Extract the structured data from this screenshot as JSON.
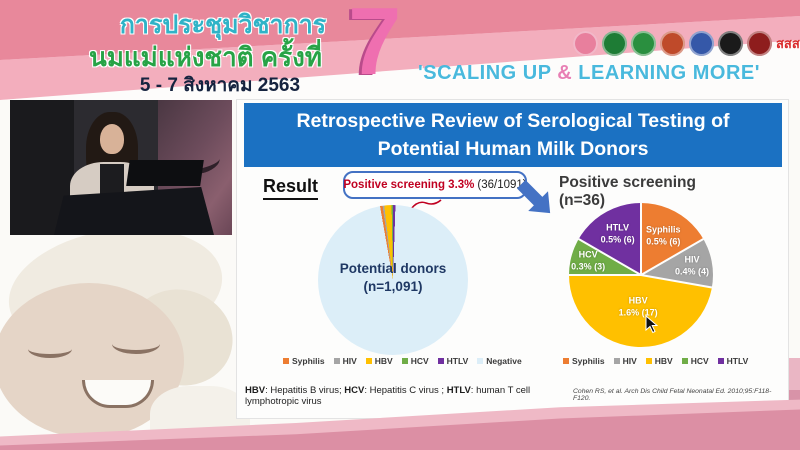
{
  "header": {
    "title_line1": "การประชุมวิชาการ",
    "title_line2": "นมแม่แห่งชาติ ครั้งที่",
    "edition_number": "7",
    "date_line": "5 - 7 สิงหาคม 2563",
    "slogan_part1": "'SCALING UP ",
    "slogan_amp": "&",
    "slogan_part2": " LEARNING MORE'",
    "logos": [
      {
        "name": "mother-child-foundation",
        "color": "#e87f9d",
        "text": ""
      },
      {
        "name": "green-health-org",
        "color": "#1e7c35",
        "text": ""
      },
      {
        "name": "public-health-dept",
        "color": "#2a8f3f",
        "text": ""
      },
      {
        "name": "university-emblem",
        "color": "#bf4a2a",
        "text": ""
      },
      {
        "name": "royal-college-emblem",
        "color": "#3558a8",
        "text": ""
      },
      {
        "name": "medical-council-emblem",
        "color": "#1a1a1a",
        "text": ""
      },
      {
        "name": "nursing-council-emblem",
        "color": "#8e1d1d",
        "text": ""
      },
      {
        "name": "thai-health-foundation",
        "color": "#d92b2b",
        "text": "สสส"
      }
    ]
  },
  "slide": {
    "title_line1": "Retrospective Review of Serological Testing of",
    "title_line2": "Potential Human Milk Donors",
    "result_label": "Result",
    "callout_highlight": "Positive screening 3.3%",
    "callout_detail": "(36/1091)",
    "left_pie_label_line1": "Potential donors",
    "left_pie_label_line2": "(n=1,091)",
    "right_pie_title": "Positive screening (n=36)",
    "footnote_segments": [
      {
        "text": "HBV",
        "bold": true
      },
      {
        "text": ": Hepatitis B virus; ",
        "bold": false
      },
      {
        "text": "HCV",
        "bold": true
      },
      {
        "text": ": Hepatitis C virus ; ",
        "bold": false
      },
      {
        "text": "HTLV",
        "bold": true
      },
      {
        "text": ": human T cell lymphotropic virus",
        "bold": false
      }
    ],
    "citation": "Cohen RS, et al. Arch Dis Child Fetal Neonatal Ed. 2010;95:F118-F120."
  },
  "chart_data": [
    {
      "type": "pie",
      "title": "Potential donors (n=1,091)",
      "total": 1091,
      "annotation": "Positive screening 3.3% (36/1091)",
      "legend_position": "bottom",
      "slices": [
        {
          "label": "Syphilis",
          "value": 6,
          "color": "#ED7D31"
        },
        {
          "label": "HIV",
          "value": 4,
          "color": "#A5A5A5"
        },
        {
          "label": "HBV",
          "value": 17,
          "color": "#FFC000"
        },
        {
          "label": "HCV",
          "value": 3,
          "color": "#70AD47"
        },
        {
          "label": "HTLV",
          "value": 6,
          "color": "#7030A0"
        },
        {
          "label": "Negative",
          "value": 1055,
          "color": "#DCEEF8"
        }
      ]
    },
    {
      "type": "pie",
      "title": "Positive screening (n=36)",
      "total": 36,
      "legend_position": "bottom",
      "slices": [
        {
          "label": "Syphilis",
          "value": 6,
          "pct_label": "0.5% (6)",
          "color": "#ED7D31"
        },
        {
          "label": "HIV",
          "value": 4,
          "pct_label": "0.4% (4)",
          "color": "#A5A5A5"
        },
        {
          "label": "HBV",
          "value": 17,
          "pct_label": "1.6% (17)",
          "color": "#FFC000"
        },
        {
          "label": "HCV",
          "value": 3,
          "pct_label": "0.3% (3)",
          "color": "#70AD47"
        },
        {
          "label": "HTLV",
          "value": 6,
          "pct_label": "0.5% (6)",
          "color": "#7030A0"
        }
      ]
    }
  ]
}
